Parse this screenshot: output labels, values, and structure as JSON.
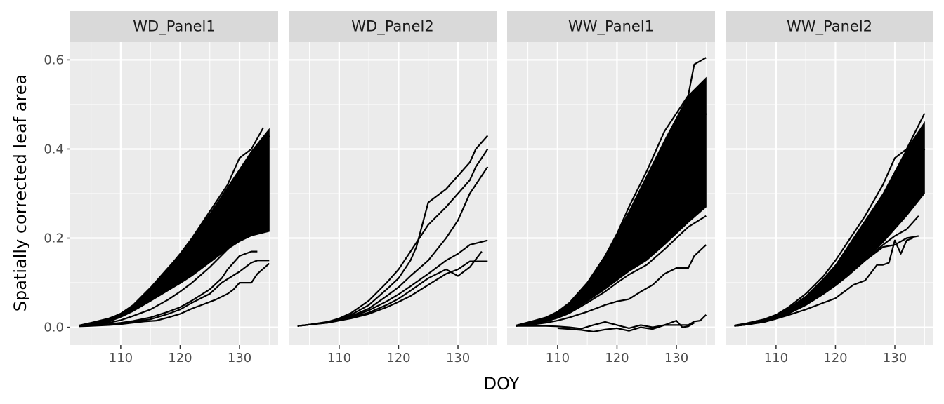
{
  "chart_data": {
    "type": "line",
    "layout": "facet_wrap",
    "xlabel": "DOY",
    "ylabel": "Spatially corrected leaf area",
    "xlim": [
      101.5,
      136.5
    ],
    "ylim": [
      -0.04,
      0.64
    ],
    "x_ticks": [
      110,
      120,
      130
    ],
    "x_tick_labels": [
      "110",
      "120",
      "130"
    ],
    "y_ticks": [
      0.0,
      0.2,
      0.4,
      0.6
    ],
    "y_tick_labels": [
      "0.0",
      "0.2",
      "0.4",
      "0.6"
    ],
    "grid": true,
    "line_color": "#000000",
    "panel_background": "#ebebeb",
    "strip_background": "#d9d9d9",
    "grid_color": "#ffffff",
    "panels": [
      {
        "title": "WD_Panel1",
        "band": {
          "x": [
            103,
            105,
            108,
            110,
            112,
            115,
            118,
            120,
            122,
            125,
            128,
            130,
            132,
            135
          ],
          "lower": [
            0.003,
            0.006,
            0.012,
            0.022,
            0.035,
            0.058,
            0.082,
            0.098,
            0.115,
            0.145,
            0.175,
            0.192,
            0.205,
            0.215
          ],
          "upper": [
            0.004,
            0.01,
            0.02,
            0.032,
            0.05,
            0.09,
            0.135,
            0.165,
            0.2,
            0.255,
            0.315,
            0.355,
            0.395,
            0.445
          ]
        },
        "series": [
          {
            "x": [
              103,
              105,
              108,
              110,
              112,
              115,
              118,
              120,
              122,
              125,
              128,
              130,
              132,
              134
            ],
            "y": [
              0.004,
              0.01,
              0.02,
              0.03,
              0.048,
              0.088,
              0.132,
              0.165,
              0.2,
              0.26,
              0.32,
              0.38,
              0.4,
              0.448
            ]
          },
          {
            "x": [
              103,
              105,
              108,
              110,
              112,
              115,
              118,
              120,
              122,
              125,
              128,
              130,
              132,
              135
            ],
            "y": [
              0.003,
              0.008,
              0.016,
              0.026,
              0.04,
              0.07,
              0.105,
              0.13,
              0.16,
              0.205,
              0.26,
              0.3,
              0.35,
              0.43
            ]
          },
          {
            "x": [
              103,
              105,
              108,
              110,
              112,
              115,
              118,
              120,
              122,
              125,
              128,
              130,
              132,
              135
            ],
            "y": [
              0.003,
              0.005,
              0.01,
              0.016,
              0.025,
              0.04,
              0.062,
              0.08,
              0.1,
              0.135,
              0.175,
              0.2,
              0.23,
              0.28
            ]
          },
          {
            "x": [
              103,
              105,
              108,
              110,
              112,
              115,
              118,
              120,
              122,
              125,
              127,
              128,
              130,
              132,
              133
            ],
            "y": [
              0.003,
              0.004,
              0.007,
              0.01,
              0.014,
              0.022,
              0.035,
              0.045,
              0.06,
              0.085,
              0.11,
              0.13,
              0.16,
              0.17,
              0.17
            ]
          },
          {
            "x": [
              103,
              105,
              108,
              110,
              112,
              114,
              116,
              118,
              120,
              122,
              124,
              126,
              128,
              129,
              130,
              132,
              133,
              135
            ],
            "y": [
              0.002,
              0.003,
              0.005,
              0.007,
              0.01,
              0.013,
              0.015,
              0.022,
              0.03,
              0.042,
              0.052,
              0.062,
              0.075,
              0.085,
              0.1,
              0.1,
              0.12,
              0.143
            ]
          },
          {
            "x": [
              103,
              105,
              108,
              110,
              112,
              115,
              118,
              120,
              122,
              125,
              127,
              130,
              132,
              133,
              135
            ],
            "y": [
              0.003,
              0.004,
              0.006,
              0.009,
              0.012,
              0.018,
              0.03,
              0.04,
              0.055,
              0.075,
              0.1,
              0.125,
              0.145,
              0.15,
              0.15
            ]
          }
        ]
      },
      {
        "title": "WD_Panel2",
        "band": {
          "x": [
            103,
            105,
            108,
            110,
            112,
            115,
            118,
            120,
            122,
            125,
            128,
            130,
            132,
            135
          ],
          "lower": [
            0.003,
            0.006,
            0.011,
            0.016,
            0.022,
            0.038,
            0.06,
            0.075,
            0.095,
            0.12,
            0.15,
            0.165,
            0.185,
            0.21
          ]
        },
        "series": [
          {
            "x": [
              103,
              105,
              108,
              110,
              112,
              115,
              118,
              120,
              122,
              125,
              128,
              130,
              132,
              133,
              135
            ],
            "y": [
              0.003,
              0.006,
              0.012,
              0.02,
              0.032,
              0.06,
              0.1,
              0.13,
              0.17,
              0.23,
              0.27,
              0.3,
              0.33,
              0.36,
              0.4
            ]
          },
          {
            "x": [
              103,
              105,
              108,
              110,
              112,
              115,
              118,
              120,
              122,
              123,
              125,
              128,
              130,
              132,
              133,
              135
            ],
            "y": [
              0.003,
              0.006,
              0.012,
              0.018,
              0.028,
              0.05,
              0.085,
              0.11,
              0.15,
              0.18,
              0.28,
              0.31,
              0.34,
              0.37,
              0.4,
              0.43
            ]
          },
          {
            "x": [
              103,
              105,
              108,
              110,
              112,
              115,
              118,
              120,
              122,
              125,
              128,
              130,
              132,
              135
            ],
            "y": [
              0.003,
              0.006,
              0.011,
              0.017,
              0.025,
              0.042,
              0.07,
              0.09,
              0.115,
              0.15,
              0.2,
              0.24,
              0.3,
              0.36
            ]
          },
          {
            "x": [
              103,
              105,
              108,
              110,
              112,
              115,
              118,
              120,
              122,
              125,
              128,
              130,
              132,
              135
            ],
            "y": [
              0.003,
              0.006,
              0.01,
              0.015,
              0.02,
              0.03,
              0.045,
              0.057,
              0.07,
              0.095,
              0.12,
              0.13,
              0.148,
              0.148
            ]
          },
          {
            "x": [
              103,
              105,
              108,
              110,
              112,
              115,
              118,
              120,
              122,
              125,
              128,
              130,
              132,
              134
            ],
            "y": [
              0.003,
              0.006,
              0.01,
              0.015,
              0.021,
              0.033,
              0.05,
              0.064,
              0.082,
              0.11,
              0.13,
              0.115,
              0.135,
              0.17
            ]
          },
          {
            "x": [
              103,
              105,
              108,
              110,
              112,
              115,
              118,
              120,
              122,
              125,
              128,
              130,
              132,
              135
            ],
            "y": [
              0.003,
              0.006,
              0.011,
              0.016,
              0.023,
              0.038,
              0.058,
              0.074,
              0.092,
              0.12,
              0.15,
              0.165,
              0.185,
              0.195
            ]
          }
        ]
      },
      {
        "title": "WW_Panel1",
        "band": {
          "x": [
            103,
            105,
            108,
            110,
            112,
            115,
            118,
            120,
            122,
            125,
            128,
            130,
            132,
            135
          ],
          "lower": [
            0.003,
            0.006,
            0.013,
            0.022,
            0.034,
            0.058,
            0.085,
            0.105,
            0.125,
            0.15,
            0.185,
            0.21,
            0.235,
            0.27
          ],
          "upper": [
            0.004,
            0.011,
            0.022,
            0.035,
            0.055,
            0.1,
            0.16,
            0.21,
            0.26,
            0.34,
            0.42,
            0.47,
            0.52,
            0.56
          ]
        },
        "series": [
          {
            "x": [
              103,
              105,
              108,
              110,
              112,
              115,
              118,
              120,
              122,
              125,
              128,
              130,
              132,
              133,
              135
            ],
            "y": [
              0.004,
              0.011,
              0.022,
              0.035,
              0.055,
              0.1,
              0.16,
              0.21,
              0.27,
              0.35,
              0.44,
              0.48,
              0.52,
              0.59,
              0.605
            ]
          },
          {
            "x": [
              103,
              105,
              108,
              110,
              112,
              115,
              118,
              120,
              122,
              125,
              128,
              130,
              132,
              135
            ],
            "y": [
              0.003,
              0.008,
              0.016,
              0.026,
              0.04,
              0.068,
              0.1,
              0.125,
              0.15,
              0.2,
              0.27,
              0.32,
              0.38,
              0.48
            ]
          },
          {
            "x": [
              103,
              105,
              108,
              110,
              112,
              115,
              118,
              120,
              122,
              124,
              126,
              128,
              130,
              132,
              133,
              135
            ],
            "y": [
              0.003,
              0.005,
              0.01,
              0.015,
              0.022,
              0.035,
              0.05,
              0.058,
              0.063,
              0.08,
              0.095,
              0.12,
              0.133,
              0.133,
              0.16,
              0.185
            ]
          },
          {
            "x": [
              103,
              105,
              108,
              110,
              112,
              114,
              116,
              118,
              120,
              122,
              124,
              126,
              128,
              130,
              132,
              133,
              134,
              135
            ],
            "y": [
              0.003,
              0.003,
              0.003,
              0.002,
              0.0,
              -0.003,
              0.005,
              0.012,
              0.005,
              -0.002,
              0.005,
              0.0,
              0.005,
              0.005,
              0.005,
              0.013,
              0.015,
              0.028
            ]
          },
          {
            "x": [
              110,
              112,
              114,
              116,
              118,
              120,
              122,
              124,
              126,
              128,
              130,
              131,
              132,
              133
            ],
            "y": [
              -0.002,
              -0.004,
              -0.006,
              -0.01,
              -0.005,
              -0.002,
              -0.008,
              0.0,
              -0.004,
              0.005,
              0.015,
              0.0,
              0.002,
              0.01
            ]
          },
          {
            "x": [
              103,
              105,
              108,
              110,
              112,
              115,
              118,
              120,
              122,
              125,
              128,
              130,
              132,
              135
            ],
            "y": [
              0.003,
              0.006,
              0.013,
              0.021,
              0.032,
              0.055,
              0.08,
              0.1,
              0.118,
              0.14,
              0.175,
              0.2,
              0.225,
              0.25
            ]
          }
        ]
      },
      {
        "title": "WW_Panel2",
        "band": {
          "x": [
            103,
            105,
            108,
            110,
            112,
            115,
            118,
            120,
            122,
            125,
            128,
            130,
            132,
            135
          ],
          "lower": [
            0.003,
            0.006,
            0.012,
            0.02,
            0.03,
            0.05,
            0.075,
            0.095,
            0.115,
            0.15,
            0.19,
            0.22,
            0.25,
            0.3
          ],
          "upper": [
            0.004,
            0.009,
            0.018,
            0.027,
            0.042,
            0.07,
            0.11,
            0.14,
            0.18,
            0.24,
            0.3,
            0.35,
            0.4,
            0.46
          ]
        },
        "series": [
          {
            "x": [
              103,
              105,
              108,
              110,
              112,
              115,
              118,
              120,
              122,
              125,
              128,
              130,
              132,
              135
            ],
            "y": [
              0.004,
              0.009,
              0.018,
              0.028,
              0.044,
              0.075,
              0.115,
              0.15,
              0.19,
              0.25,
              0.32,
              0.38,
              0.4,
              0.48
            ]
          },
          {
            "x": [
              103,
              105,
              108,
              110,
              112,
              115,
              118,
              120,
              122,
              125,
              128,
              130,
              132,
              134
            ],
            "y": [
              0.003,
              0.006,
              0.012,
              0.02,
              0.03,
              0.05,
              0.075,
              0.094,
              0.115,
              0.15,
              0.185,
              0.205,
              0.22,
              0.25
            ]
          },
          {
            "x": [
              103,
              105,
              108,
              110,
              112,
              115,
              118,
              120,
              121,
              122,
              123,
              125,
              127,
              128,
              129,
              130,
              131,
              132,
              133
            ],
            "y": [
              0.003,
              0.006,
              0.012,
              0.019,
              0.027,
              0.04,
              0.055,
              0.065,
              0.075,
              0.085,
              0.095,
              0.105,
              0.14,
              0.14,
              0.145,
              0.195,
              0.165,
              0.195,
              0.2
            ]
          },
          {
            "x": [
              103,
              105,
              108,
              110,
              112,
              115,
              118,
              120,
              122,
              125,
              128,
              130,
              132,
              134
            ],
            "y": [
              0.003,
              0.006,
              0.012,
              0.02,
              0.03,
              0.05,
              0.075,
              0.094,
              0.115,
              0.15,
              0.18,
              0.185,
              0.2,
              0.205
            ]
          },
          {
            "x": [
              103,
              105,
              108,
              110,
              112,
              115,
              118,
              120,
              122,
              125,
              128,
              130,
              132,
              135
            ],
            "y": [
              0.003,
              0.006,
              0.013,
              0.021,
              0.032,
              0.055,
              0.085,
              0.11,
              0.14,
              0.19,
              0.24,
              0.28,
              0.33,
              0.4
            ]
          }
        ]
      }
    ]
  }
}
